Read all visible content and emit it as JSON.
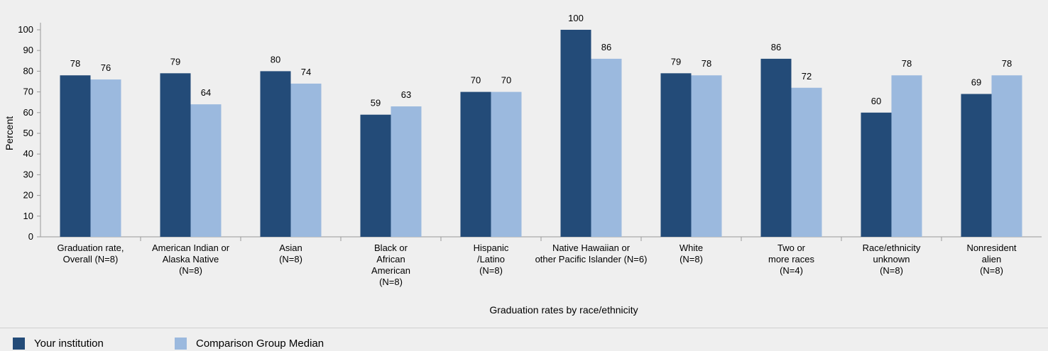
{
  "chart_data": {
    "type": "bar",
    "ylabel": "Percent",
    "xlabel": "Graduation rates by race/ethnicity",
    "ylim": [
      0,
      100
    ],
    "yticks": [
      0,
      10,
      20,
      30,
      40,
      50,
      60,
      70,
      80,
      90,
      100
    ],
    "grid": false,
    "legend_position": "bottom-left",
    "categories": [
      [
        "Graduation rate,",
        "Overall (N=8)"
      ],
      [
        "American Indian or",
        "Alaska Native",
        "(N=8)"
      ],
      [
        "Asian",
        "(N=8)"
      ],
      [
        "Black or",
        "African",
        "American",
        "(N=8)"
      ],
      [
        "Hispanic",
        "/Latino",
        "(N=8)"
      ],
      [
        "Native Hawaiian or",
        "other Pacific Islander (N=6)"
      ],
      [
        "White",
        "(N=8)"
      ],
      [
        "Two or",
        "more races",
        "(N=4)"
      ],
      [
        "Race/ethnicity",
        "unknown",
        "(N=8)"
      ],
      [
        "Nonresident",
        "alien",
        "(N=8)"
      ]
    ],
    "series": [
      {
        "name": "Your institution",
        "color": "#234b78",
        "values": [
          78,
          79,
          80,
          59,
          70,
          100,
          79,
          86,
          60,
          69
        ]
      },
      {
        "name": "Comparison Group Median",
        "color": "#9bb9de",
        "values": [
          76,
          64,
          74,
          63,
          70,
          86,
          78,
          72,
          78,
          78
        ]
      }
    ]
  },
  "legend": {
    "items": [
      {
        "label": "Your institution",
        "color": "#234b78"
      },
      {
        "label": "Comparison Group Median",
        "color": "#9bb9de"
      }
    ]
  }
}
